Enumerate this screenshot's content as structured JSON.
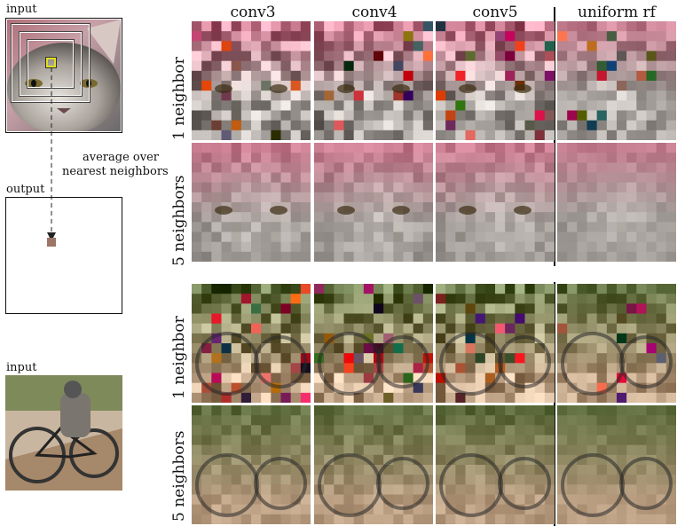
{
  "left": {
    "input_label_top": "input",
    "output_label": "output",
    "input_label_bottom": "input",
    "annotation_line1": "average over",
    "annotation_line2": "nearest neighbors"
  },
  "columns": [
    "conv3",
    "conv4",
    "conv5",
    "uniform rf"
  ],
  "rows": [
    "1 neighbor",
    "5 neighbors",
    "1 neighbor",
    "5 neighbors"
  ],
  "colors": {
    "cat_fur": "#9a9590",
    "cat_pink": "#c87a8e",
    "bike_green": "#5f6e3e",
    "bike_tan": "#b89c80",
    "highlight": "#e0e020",
    "output_patch": "#9b7565"
  }
}
